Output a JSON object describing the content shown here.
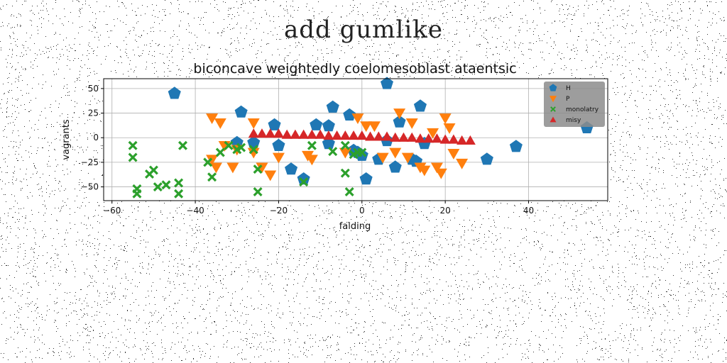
{
  "suptitle": "add gumlike",
  "chart_data": {
    "type": "scatter",
    "title": "biconcave weightedly coelomesoblast ataentsic",
    "xlabel": "falding",
    "ylabel": "vagrants",
    "xlim": [
      -62,
      59
    ],
    "ylim": [
      -64,
      60
    ],
    "xticks": [
      -60,
      -40,
      -20,
      0,
      20,
      40
    ],
    "yticks": [
      -50,
      -25,
      0,
      25,
      50
    ],
    "grid": true,
    "legend_position": "top-right",
    "series": [
      {
        "name": "H",
        "marker": "pentagon",
        "color": "#1f77b4",
        "points": [
          [
            -45,
            45
          ],
          [
            -29,
            26
          ],
          [
            -30,
            -5
          ],
          [
            -26,
            -5
          ],
          [
            -21,
            13
          ],
          [
            -20,
            -8
          ],
          [
            -17,
            -32
          ],
          [
            -14,
            -42
          ],
          [
            -11,
            13
          ],
          [
            -8,
            12
          ],
          [
            -7,
            31
          ],
          [
            -8,
            -6
          ],
          [
            -3,
            23
          ],
          [
            -2,
            -13
          ],
          [
            -1,
            -15
          ],
          [
            0,
            -18
          ],
          [
            1,
            -42
          ],
          [
            4,
            -22
          ],
          [
            6,
            55
          ],
          [
            6,
            -3
          ],
          [
            8,
            -30
          ],
          [
            9,
            16
          ],
          [
            12,
            -22
          ],
          [
            13,
            -24
          ],
          [
            14,
            32
          ],
          [
            15,
            -6
          ],
          [
            30,
            -22
          ],
          [
            37,
            -9
          ],
          [
            54,
            10
          ]
        ]
      },
      {
        "name": "P",
        "marker": "triangle-down",
        "color": "#ff7f0e",
        "points": [
          [
            -36,
            20
          ],
          [
            -34,
            15
          ],
          [
            -36,
            -22
          ],
          [
            -35,
            -30
          ],
          [
            -33,
            -8
          ],
          [
            -31,
            -30
          ],
          [
            -30,
            -12
          ],
          [
            -26,
            -15
          ],
          [
            -26,
            15
          ],
          [
            -24,
            -30
          ],
          [
            -22,
            -38
          ],
          [
            -20,
            -20
          ],
          [
            -13,
            -18
          ],
          [
            -12,
            -22
          ],
          [
            -4,
            -15
          ],
          [
            -1,
            20
          ],
          [
            1,
            12
          ],
          [
            3,
            12
          ],
          [
            5,
            -20
          ],
          [
            8,
            -15
          ],
          [
            9,
            25
          ],
          [
            11,
            -20
          ],
          [
            12,
            15
          ],
          [
            14,
            -30
          ],
          [
            15,
            -33
          ],
          [
            17,
            5
          ],
          [
            18,
            -30
          ],
          [
            19,
            -36
          ],
          [
            20,
            20
          ],
          [
            21,
            10
          ],
          [
            22,
            -16
          ],
          [
            24,
            -26
          ]
        ]
      },
      {
        "name": "monolatry",
        "marker": "x-filled",
        "color": "#2ca02c",
        "points": [
          [
            -55,
            -8
          ],
          [
            -55,
            -20
          ],
          [
            -54,
            -52
          ],
          [
            -54,
            -57
          ],
          [
            -51,
            -37
          ],
          [
            -50,
            -33
          ],
          [
            -49,
            -50
          ],
          [
            -47,
            -48
          ],
          [
            -44,
            -46
          ],
          [
            -44,
            -57
          ],
          [
            -43,
            -8
          ],
          [
            -37,
            -25
          ],
          [
            -36,
            -40
          ],
          [
            -34,
            -15
          ],
          [
            -32,
            -8
          ],
          [
            -30,
            -12
          ],
          [
            -29,
            -10
          ],
          [
            -26,
            -12
          ],
          [
            -25,
            -32
          ],
          [
            -25,
            -55
          ],
          [
            -14,
            -45
          ],
          [
            -12,
            -8
          ],
          [
            -7,
            -14
          ],
          [
            -4,
            -8
          ],
          [
            -4,
            -36
          ],
          [
            -3,
            -55
          ],
          [
            -2,
            -17
          ],
          [
            -1,
            -15
          ],
          [
            0,
            -15
          ]
        ]
      },
      {
        "name": "misy",
        "marker": "triangle-up",
        "color": "#d62728",
        "points": [
          [
            -26,
            4
          ],
          [
            -24,
            4
          ],
          [
            -22,
            4
          ],
          [
            -20,
            4
          ],
          [
            -18,
            3
          ],
          [
            -16,
            3
          ],
          [
            -14,
            3
          ],
          [
            -12,
            3
          ],
          [
            -10,
            3
          ],
          [
            -8,
            2
          ],
          [
            -6,
            2
          ],
          [
            -4,
            2
          ],
          [
            -2,
            2
          ],
          [
            0,
            2
          ],
          [
            2,
            1
          ],
          [
            4,
            1
          ],
          [
            6,
            1
          ],
          [
            8,
            0
          ],
          [
            10,
            0
          ],
          [
            12,
            0
          ],
          [
            14,
            -1
          ],
          [
            16,
            -1
          ],
          [
            18,
            -1
          ],
          [
            20,
            -2
          ],
          [
            22,
            -2
          ],
          [
            24,
            -3
          ],
          [
            26,
            -3
          ]
        ]
      }
    ]
  }
}
